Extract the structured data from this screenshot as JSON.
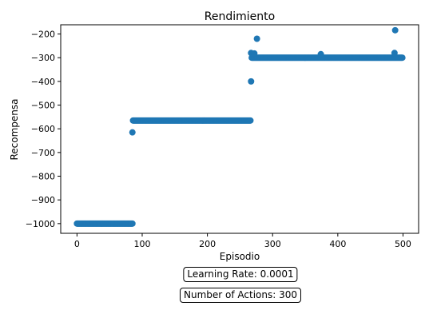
{
  "chart_data": {
    "type": "scatter",
    "title": "Rendimiento",
    "xlabel": "Episodio",
    "ylabel": "Recompensa",
    "xlim": [
      -24.95,
      523.95
    ],
    "ylim": [
      -1041,
      -161
    ],
    "xticks": [
      0,
      100,
      200,
      300,
      400,
      500
    ],
    "yticks": [
      -200,
      -300,
      -400,
      -500,
      -600,
      -700,
      -800,
      -900,
      -1000
    ],
    "grid": false,
    "color": "#1f77b4",
    "segments": [
      {
        "x_start": 0,
        "x_end": 85,
        "y": -1000
      },
      {
        "x_start": 86,
        "x_end": 266,
        "y": -565
      },
      {
        "x_start": 268,
        "x_end": 499,
        "y": -300
      }
    ],
    "outliers": [
      {
        "x": 85,
        "y": -615
      },
      {
        "x": 267,
        "y": -400
      },
      {
        "x": 267,
        "y": -280
      },
      {
        "x": 272,
        "y": -282
      },
      {
        "x": 276,
        "y": -220
      },
      {
        "x": 374,
        "y": -285
      },
      {
        "x": 487,
        "y": -280
      },
      {
        "x": 488,
        "y": -184
      }
    ]
  },
  "annotations": {
    "learning_rate": "Learning Rate: 0.0001",
    "num_actions": "Number of Actions: 300"
  }
}
